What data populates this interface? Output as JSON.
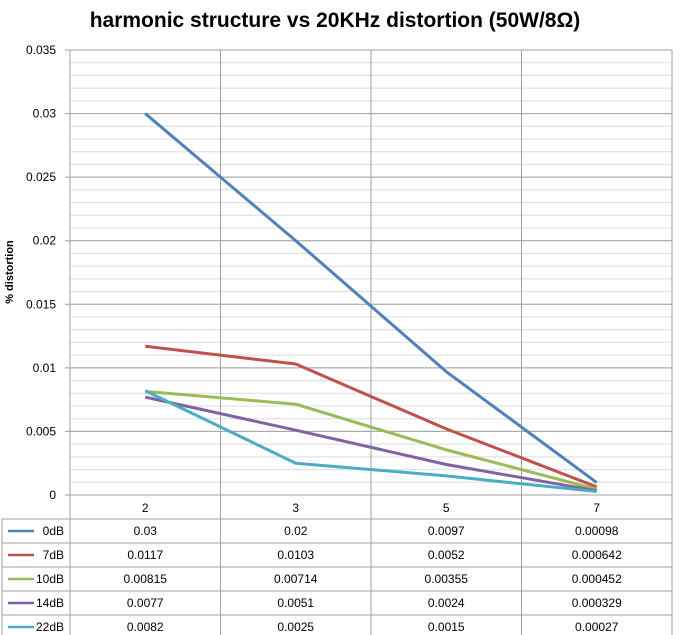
{
  "chart_data": {
    "type": "line",
    "title": "harmonic structure vs 20KHz distortion (50W/8Ω)",
    "xlabel": "",
    "ylabel": "% distortion",
    "categories": [
      "2",
      "3",
      "5",
      "7"
    ],
    "ylim": [
      0,
      0.035
    ],
    "yticks": [
      "0",
      "0.005",
      "0.01",
      "0.015",
      "0.02",
      "0.025",
      "0.03",
      "0.035"
    ],
    "grid": true,
    "legend": "data-table",
    "series": [
      {
        "name": "0dB",
        "color": "#4f81bd",
        "values": [
          0.03,
          0.02,
          0.0097,
          0.00098
        ],
        "labels": [
          "0.03",
          "0.02",
          "0.0097",
          "0.00098"
        ]
      },
      {
        "name": "7dB",
        "color": "#c0504d",
        "values": [
          0.0117,
          0.0103,
          0.0052,
          0.000642
        ],
        "labels": [
          "0.0117",
          "0.0103",
          "0.0052",
          "0.000642"
        ]
      },
      {
        "name": "10dB",
        "color": "#9bbb59",
        "values": [
          0.00815,
          0.00714,
          0.00355,
          0.000452
        ],
        "labels": [
          "0.00815",
          "0.00714",
          "0.00355",
          "0.000452"
        ]
      },
      {
        "name": "14dB",
        "color": "#8064a2",
        "values": [
          0.0077,
          0.0051,
          0.0024,
          0.000329
        ],
        "labels": [
          "0.0077",
          "0.0051",
          "0.0024",
          "0.000329"
        ]
      },
      {
        "name": "22dB",
        "color": "#4bacc6",
        "values": [
          0.0082,
          0.0025,
          0.0015,
          0.00027
        ],
        "labels": [
          "0.0082",
          "0.0025",
          "0.0015",
          "0.00027"
        ]
      }
    ]
  }
}
